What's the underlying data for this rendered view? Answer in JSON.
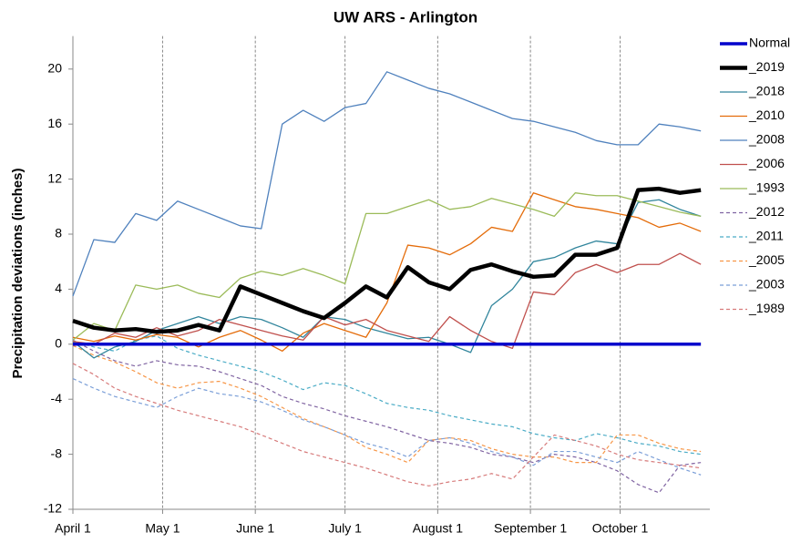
{
  "chart_data": {
    "type": "line",
    "title": "UW ARS - Arlington",
    "y_label": "Precipitation deviations (inches)",
    "x": [
      0,
      7,
      14,
      21,
      28,
      35,
      42,
      49,
      56,
      63,
      70,
      77,
      84,
      91,
      98,
      105,
      112,
      119,
      126,
      133,
      140,
      147,
      154,
      161,
      168,
      175,
      182,
      189,
      196,
      203,
      210
    ],
    "xlim": [
      0,
      213
    ],
    "xticks": [
      {
        "value": 0,
        "label": "April 1"
      },
      {
        "value": 30,
        "label": "May 1"
      },
      {
        "value": 61,
        "label": "June 1"
      },
      {
        "value": 91,
        "label": "July 1"
      },
      {
        "value": 122,
        "label": "August 1"
      },
      {
        "value": 153,
        "label": "September 1"
      },
      {
        "value": 183,
        "label": "October 1"
      }
    ],
    "ylim": [
      -12,
      22
    ],
    "yticks": [
      -12,
      -8,
      -4,
      0,
      4,
      8,
      12,
      16,
      20
    ],
    "x_grid": true,
    "legend": "right",
    "series": [
      {
        "name": "Normal",
        "color": "#0000cc",
        "width": 3.5,
        "dashed": false,
        "values": [
          0,
          0,
          0,
          0,
          0,
          0,
          0,
          0,
          0,
          0,
          0,
          0,
          0,
          0,
          0,
          0,
          0,
          0,
          0,
          0,
          0,
          0,
          0,
          0,
          0,
          0,
          0,
          0,
          0,
          0,
          0
        ]
      },
      {
        "name": "_2019",
        "color": "#000000",
        "width": 4.5,
        "dashed": false,
        "values": [
          1.7,
          1.2,
          1.0,
          1.1,
          0.9,
          1.0,
          1.4,
          1.0,
          4.2,
          3.6,
          3.0,
          2.4,
          1.9,
          3.0,
          4.2,
          3.4,
          5.6,
          4.5,
          4.0,
          5.4,
          5.8,
          5.3,
          4.9,
          5.0,
          6.5,
          6.5,
          7.0,
          11.2,
          11.3,
          11.0,
          11.2
        ]
      },
      {
        "name": "_2018",
        "color": "#31859c",
        "width": 1.3,
        "dashed": false,
        "values": [
          0.2,
          -1.0,
          -0.2,
          0.2,
          1.0,
          1.5,
          2.0,
          1.5,
          2.0,
          1.8,
          1.2,
          0.5,
          2.0,
          1.8,
          1.2,
          0.8,
          0.4,
          0.5,
          0,
          -0.6,
          2.8,
          4.0,
          6.0,
          6.3,
          7.0,
          7.5,
          7.3,
          10.3,
          10.5,
          9.8,
          9.3
        ]
      },
      {
        "name": "_2010",
        "color": "#e46c0a",
        "width": 1.3,
        "dashed": false,
        "values": [
          0.5,
          0.2,
          0.6,
          0.3,
          0.7,
          0.5,
          -0.2,
          0.5,
          1.0,
          0.3,
          -0.5,
          0.8,
          1.5,
          1.0,
          0.5,
          3.0,
          7.2,
          7.0,
          6.5,
          7.3,
          8.5,
          8.2,
          11.0,
          10.5,
          10.0,
          9.8,
          9.5,
          9.2,
          8.5,
          8.8,
          8.2
        ]
      },
      {
        "name": "_2008",
        "color": "#4f81bd",
        "width": 1.3,
        "dashed": false,
        "values": [
          3.5,
          7.6,
          7.4,
          9.5,
          9.0,
          10.4,
          9.8,
          9.2,
          8.6,
          8.4,
          16.0,
          17.0,
          16.2,
          17.2,
          17.5,
          19.8,
          19.2,
          18.6,
          18.2,
          17.6,
          17.0,
          16.4,
          16.2,
          15.8,
          15.4,
          14.8,
          14.5,
          14.5,
          16.0,
          15.8,
          15.5
        ]
      },
      {
        "name": "_2006",
        "color": "#c0504d",
        "width": 1.3,
        "dashed": false,
        "values": [
          0.2,
          0,
          0.8,
          0.5,
          1.2,
          0.6,
          1.0,
          1.8,
          1.4,
          1.0,
          0.6,
          0.3,
          2.0,
          1.4,
          1.8,
          1.0,
          0.6,
          0.2,
          2.0,
          1.0,
          0.2,
          -0.3,
          3.8,
          3.6,
          5.2,
          5.8,
          5.2,
          5.8,
          5.8,
          6.6,
          5.8
        ]
      },
      {
        "name": "_1993",
        "color": "#9bbb59",
        "width": 1.3,
        "dashed": false,
        "values": [
          0.3,
          1.5,
          1.0,
          4.3,
          4.0,
          4.3,
          3.7,
          3.4,
          4.8,
          5.3,
          5.0,
          5.5,
          5.0,
          4.4,
          9.5,
          9.5,
          10.0,
          10.5,
          9.8,
          10.0,
          10.6,
          10.2,
          9.8,
          9.3,
          11.0,
          10.8,
          10.8,
          10.4,
          10.0,
          9.6,
          9.3
        ]
      },
      {
        "name": "_2012",
        "color": "#8064a2",
        "width": 1.2,
        "dashed": true,
        "values": [
          0.3,
          -0.5,
          -1.2,
          -1.6,
          -1.2,
          -1.5,
          -1.6,
          -2.0,
          -2.5,
          -3.0,
          -3.8,
          -4.3,
          -4.7,
          -5.2,
          -5.6,
          -6.0,
          -6.5,
          -7.0,
          -7.2,
          -7.5,
          -8.0,
          -8.2,
          -8.6,
          -8.0,
          -8.2,
          -8.6,
          -9.2,
          -10.2,
          -10.8,
          -8.8,
          -8.6
        ]
      },
      {
        "name": "_2011",
        "color": "#4bacc6",
        "width": 1.2,
        "dashed": true,
        "values": [
          0.2,
          -0.2,
          -0.5,
          0.3,
          0.6,
          -0.3,
          -0.8,
          -1.2,
          -1.6,
          -2.0,
          -2.6,
          -3.3,
          -2.8,
          -3.0,
          -3.6,
          -4.3,
          -4.6,
          -4.8,
          -5.2,
          -5.5,
          -5.8,
          -6.0,
          -6.5,
          -6.8,
          -7.0,
          -6.5,
          -6.8,
          -7.2,
          -7.4,
          -7.8,
          -8.0
        ]
      },
      {
        "name": "_2005",
        "color": "#f79646",
        "width": 1.2,
        "dashed": true,
        "values": [
          -0.1,
          -0.8,
          -1.3,
          -2.0,
          -2.8,
          -3.2,
          -2.8,
          -2.7,
          -3.2,
          -3.8,
          -4.6,
          -5.4,
          -6.0,
          -6.6,
          -7.5,
          -8.0,
          -8.6,
          -7.0,
          -6.8,
          -7.0,
          -7.6,
          -8.0,
          -8.2,
          -8.2,
          -8.6,
          -8.6,
          -6.6,
          -6.6,
          -7.2,
          -7.6,
          -7.8
        ]
      },
      {
        "name": "_2003",
        "color": "#7b9fd8",
        "width": 1.2,
        "dashed": true,
        "values": [
          -2.5,
          -3.2,
          -3.8,
          -4.2,
          -4.6,
          -3.8,
          -3.2,
          -3.6,
          -3.8,
          -4.2,
          -4.8,
          -5.5,
          -6.0,
          -6.6,
          -7.2,
          -7.6,
          -8.2,
          -7.0,
          -6.8,
          -7.2,
          -7.8,
          -8.2,
          -8.8,
          -7.8,
          -7.8,
          -8.2,
          -8.6,
          -7.8,
          -8.4,
          -9.0,
          -9.5
        ]
      },
      {
        "name": "_1989",
        "color": "#d77b7b",
        "width": 1.2,
        "dashed": true,
        "values": [
          -1.4,
          -2.2,
          -3.2,
          -3.8,
          -4.3,
          -4.8,
          -5.2,
          -5.6,
          -6.0,
          -6.6,
          -7.2,
          -7.8,
          -8.2,
          -8.6,
          -9.0,
          -9.5,
          -10.0,
          -10.3,
          -10.0,
          -9.8,
          -9.4,
          -9.8,
          -8.2,
          -6.6,
          -7.0,
          -7.4,
          -8.0,
          -8.4,
          -8.6,
          -8.8,
          -9.0
        ]
      }
    ]
  }
}
